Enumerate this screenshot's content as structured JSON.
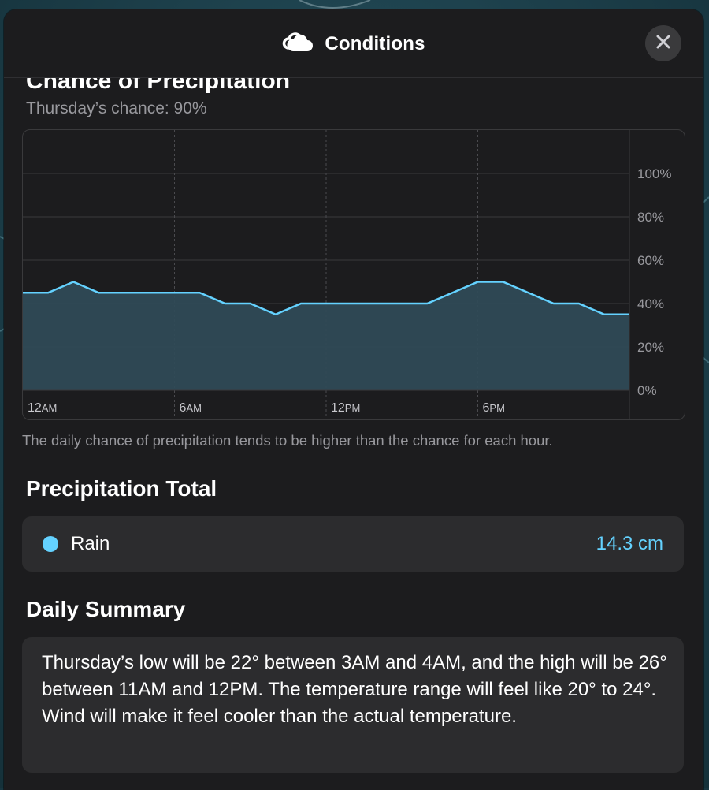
{
  "window": {
    "title": "Conditions",
    "title_icon": "cloud-icon",
    "close_icon": "close-icon"
  },
  "precipitation_chance": {
    "heading": "Chance of Precipitation",
    "subtitle": "Thursday’s chance: 90%",
    "footnote": "The daily chance of precipitation tends to be higher than the chance for each hour."
  },
  "chart_data": {
    "type": "area",
    "title": "Chance of Precipitation",
    "x_ticks": [
      "12AM",
      "6AM",
      "12PM",
      "6PM"
    ],
    "y_ticks": [
      "0%",
      "20%",
      "40%",
      "60%",
      "80%",
      "100%"
    ],
    "ylim": [
      0,
      120
    ],
    "x": [
      0,
      1,
      2,
      3,
      4,
      5,
      6,
      7,
      8,
      9,
      10,
      11,
      12,
      13,
      14,
      15,
      16,
      17,
      18,
      19,
      20,
      21,
      22,
      23
    ],
    "values": [
      45,
      45,
      50,
      45,
      45,
      45,
      45,
      45,
      40,
      40,
      35,
      40,
      40,
      40,
      40,
      40,
      40,
      45,
      50,
      50,
      45,
      40,
      40,
      35
    ],
    "grid": true,
    "colors": {
      "line": "#64d2ff",
      "fill": "#2f4a56",
      "grid": "#3a3a3c"
    }
  },
  "precipitation_total": {
    "heading": "Precipitation Total",
    "label": "Rain",
    "value": "14.3 cm",
    "dot_color": "#64d2ff"
  },
  "daily_summary": {
    "heading": "Daily Summary",
    "text": "Thursday’s low will be 22° between 3AM and 4AM, and the high will be 26° between 11AM and 12PM. The temperature range will feel like 20° to 24°. Wind will make it feel cooler than the actual temperature."
  }
}
